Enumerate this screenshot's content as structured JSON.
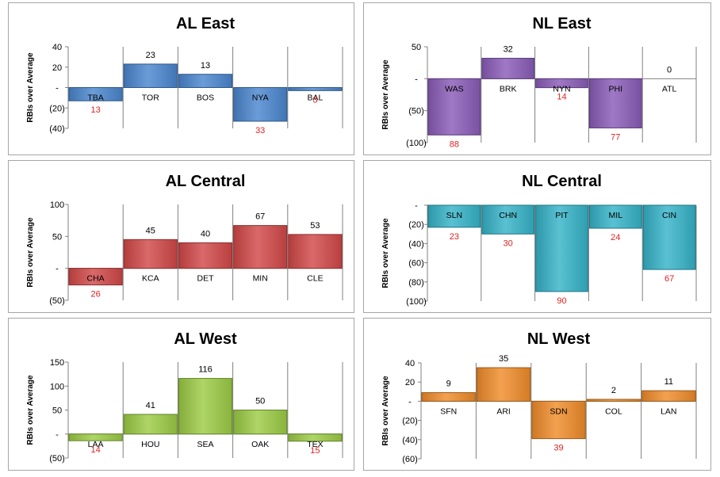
{
  "chart_data": [
    {
      "type": "bar",
      "title": "AL East",
      "ylabel": "RBIs over Average",
      "ylim": [
        -40,
        40
      ],
      "yticks": [
        40,
        20,
        0,
        -20,
        -40
      ],
      "ytick_labels": [
        "40",
        "20",
        "-",
        "(20)",
        "(40)"
      ],
      "categories": [
        "TBA",
        "TOR",
        "BOS",
        "NYA",
        "BAL"
      ],
      "values": [
        -13,
        23,
        13,
        -33,
        -3
      ],
      "value_labels": [
        "13",
        "23",
        "13",
        "33",
        "3"
      ],
      "color": "#4a86cf"
    },
    {
      "type": "bar",
      "title": "NL East",
      "ylabel": "RBIs over Average",
      "ylim": [
        -100,
        50
      ],
      "yticks": [
        50,
        0,
        -50,
        -100
      ],
      "ytick_labels": [
        "50",
        "-",
        "(50)",
        "(100)"
      ],
      "categories": [
        "WAS",
        "BRK",
        "NYN",
        "PHI",
        "ATL"
      ],
      "values": [
        -88,
        32,
        -14,
        -77,
        0
      ],
      "value_labels": [
        "88",
        "32",
        "14",
        "77",
        "0"
      ],
      "color": "#8a5cb8"
    },
    {
      "type": "bar",
      "title": "AL Central",
      "ylabel": "RBIs over Average",
      "ylim": [
        -50,
        100
      ],
      "yticks": [
        100,
        50,
        0,
        -50
      ],
      "ytick_labels": [
        "100",
        "50",
        "-",
        "(50)"
      ],
      "categories": [
        "CHA",
        "KCA",
        "DET",
        "MIN",
        "CLE"
      ],
      "values": [
        -26,
        45,
        40,
        67,
        53
      ],
      "value_labels": [
        "26",
        "45",
        "40",
        "67",
        "53"
      ],
      "color": "#d24848"
    },
    {
      "type": "bar",
      "title": "NL Central",
      "ylabel": "RBIs over Average",
      "ylim": [
        -100,
        0
      ],
      "yticks": [
        0,
        -20,
        -40,
        -60,
        -80,
        -100
      ],
      "ytick_labels": [
        "-",
        "(20)",
        "(40)",
        "(60)",
        "(80)",
        "(100)"
      ],
      "categories": [
        "SLN",
        "CHN",
        "PIT",
        "MIL",
        "CIN"
      ],
      "values": [
        -23,
        -30,
        -90,
        -24,
        -67
      ],
      "value_labels": [
        "23",
        "30",
        "90",
        "24",
        "67"
      ],
      "color": "#35b3c8"
    },
    {
      "type": "bar",
      "title": "AL West",
      "ylabel": "RBIs over Average",
      "ylim": [
        -50,
        150
      ],
      "yticks": [
        150,
        100,
        50,
        0,
        -50
      ],
      "ytick_labels": [
        "150",
        "100",
        "50",
        "-",
        "(50)"
      ],
      "categories": [
        "LAA",
        "HOU",
        "SEA",
        "OAK",
        "TEX"
      ],
      "values": [
        -14,
        41,
        116,
        50,
        -15
      ],
      "value_labels": [
        "14",
        "41",
        "116",
        "50",
        "15"
      ],
      "color": "#9ccc45"
    },
    {
      "type": "bar",
      "title": "NL West",
      "ylabel": "RBIs over Average",
      "ylim": [
        -60,
        40
      ],
      "yticks": [
        40,
        20,
        0,
        -20,
        -40,
        -60
      ],
      "ytick_labels": [
        "40",
        "20",
        "-",
        "(20)",
        "(40)",
        "(60)"
      ],
      "categories": [
        "SFN",
        "ARI",
        "SDN",
        "COL",
        "LAN"
      ],
      "values": [
        9,
        35,
        -39,
        2,
        11
      ],
      "value_labels": [
        "9",
        "35",
        "39",
        "2",
        "11"
      ],
      "color": "#f08c2a"
    }
  ],
  "styles": {
    "negative_label_color": "#e02020",
    "positive_label_color": "#000000",
    "gridline_color": "#808080",
    "border_color": "#a6a6a6"
  }
}
